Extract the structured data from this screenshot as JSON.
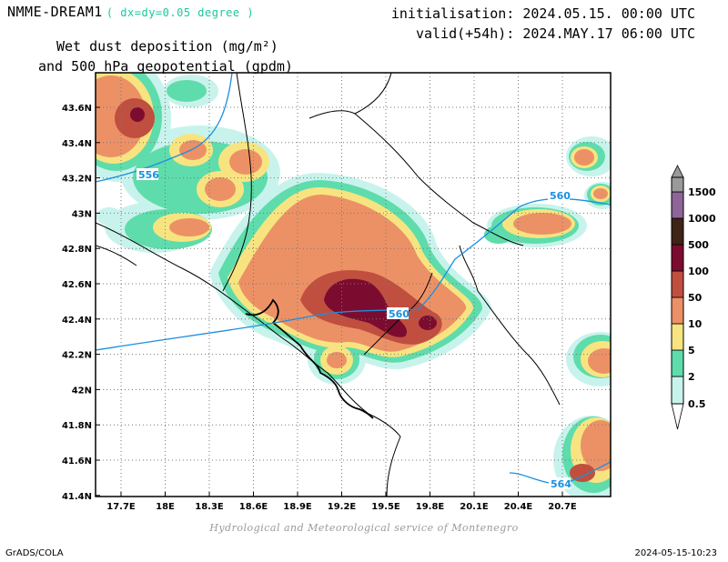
{
  "header": {
    "model": "NMME-DREAM1",
    "resolution": "( dx=dy=0.05 degree )",
    "initialisation": "initialisation: 2024.05.15. 00:00 UTC",
    "valid": "valid(+54h): 2024.MAY.17 06:00 UTC",
    "subtitle_line1": "Wet dust deposition (mg/m²)",
    "subtitle_line2": "and 500 hPa geopotential (gpdm)"
  },
  "axes": {
    "lat_labels": [
      "43.6N",
      "43.4N",
      "43.2N",
      "43N",
      "42.8N",
      "42.6N",
      "42.4N",
      "42.2N",
      "42N",
      "41.8N",
      "41.6N",
      "41.4N"
    ],
    "lon_labels": [
      "17.7E",
      "18E",
      "18.3E",
      "18.6E",
      "18.9E",
      "19.2E",
      "19.5E",
      "19.8E",
      "20.1E",
      "20.4E",
      "20.7E"
    ]
  },
  "contours": {
    "labels": [
      "556",
      "560",
      "560",
      "564"
    ],
    "color": "#1b8fe0"
  },
  "legend": {
    "levels": [
      "0.5",
      "2",
      "5",
      "10",
      "50",
      "100",
      "500",
      "1000",
      "1500"
    ],
    "colors": [
      "#c8f3ec",
      "#5fdcab",
      "#f7e481",
      "#ec9166",
      "#c04f3f",
      "#7c0c2f",
      "#3e2516",
      "#8e6598",
      "#9a9a9a"
    ]
  },
  "footer": {
    "credit": "Hydrological and Meteorological service of Montenegro",
    "software": "GrADS/COLA",
    "timestamp": "2024-05-15-10:23"
  },
  "colors": {
    "c05": "#c8f3ec",
    "c2": "#5fdcab",
    "c5": "#f7e481",
    "c10": "#ec9166",
    "c50": "#c04f3f",
    "c100": "#7c0c2f",
    "geopotential": "#1b8fe0"
  }
}
